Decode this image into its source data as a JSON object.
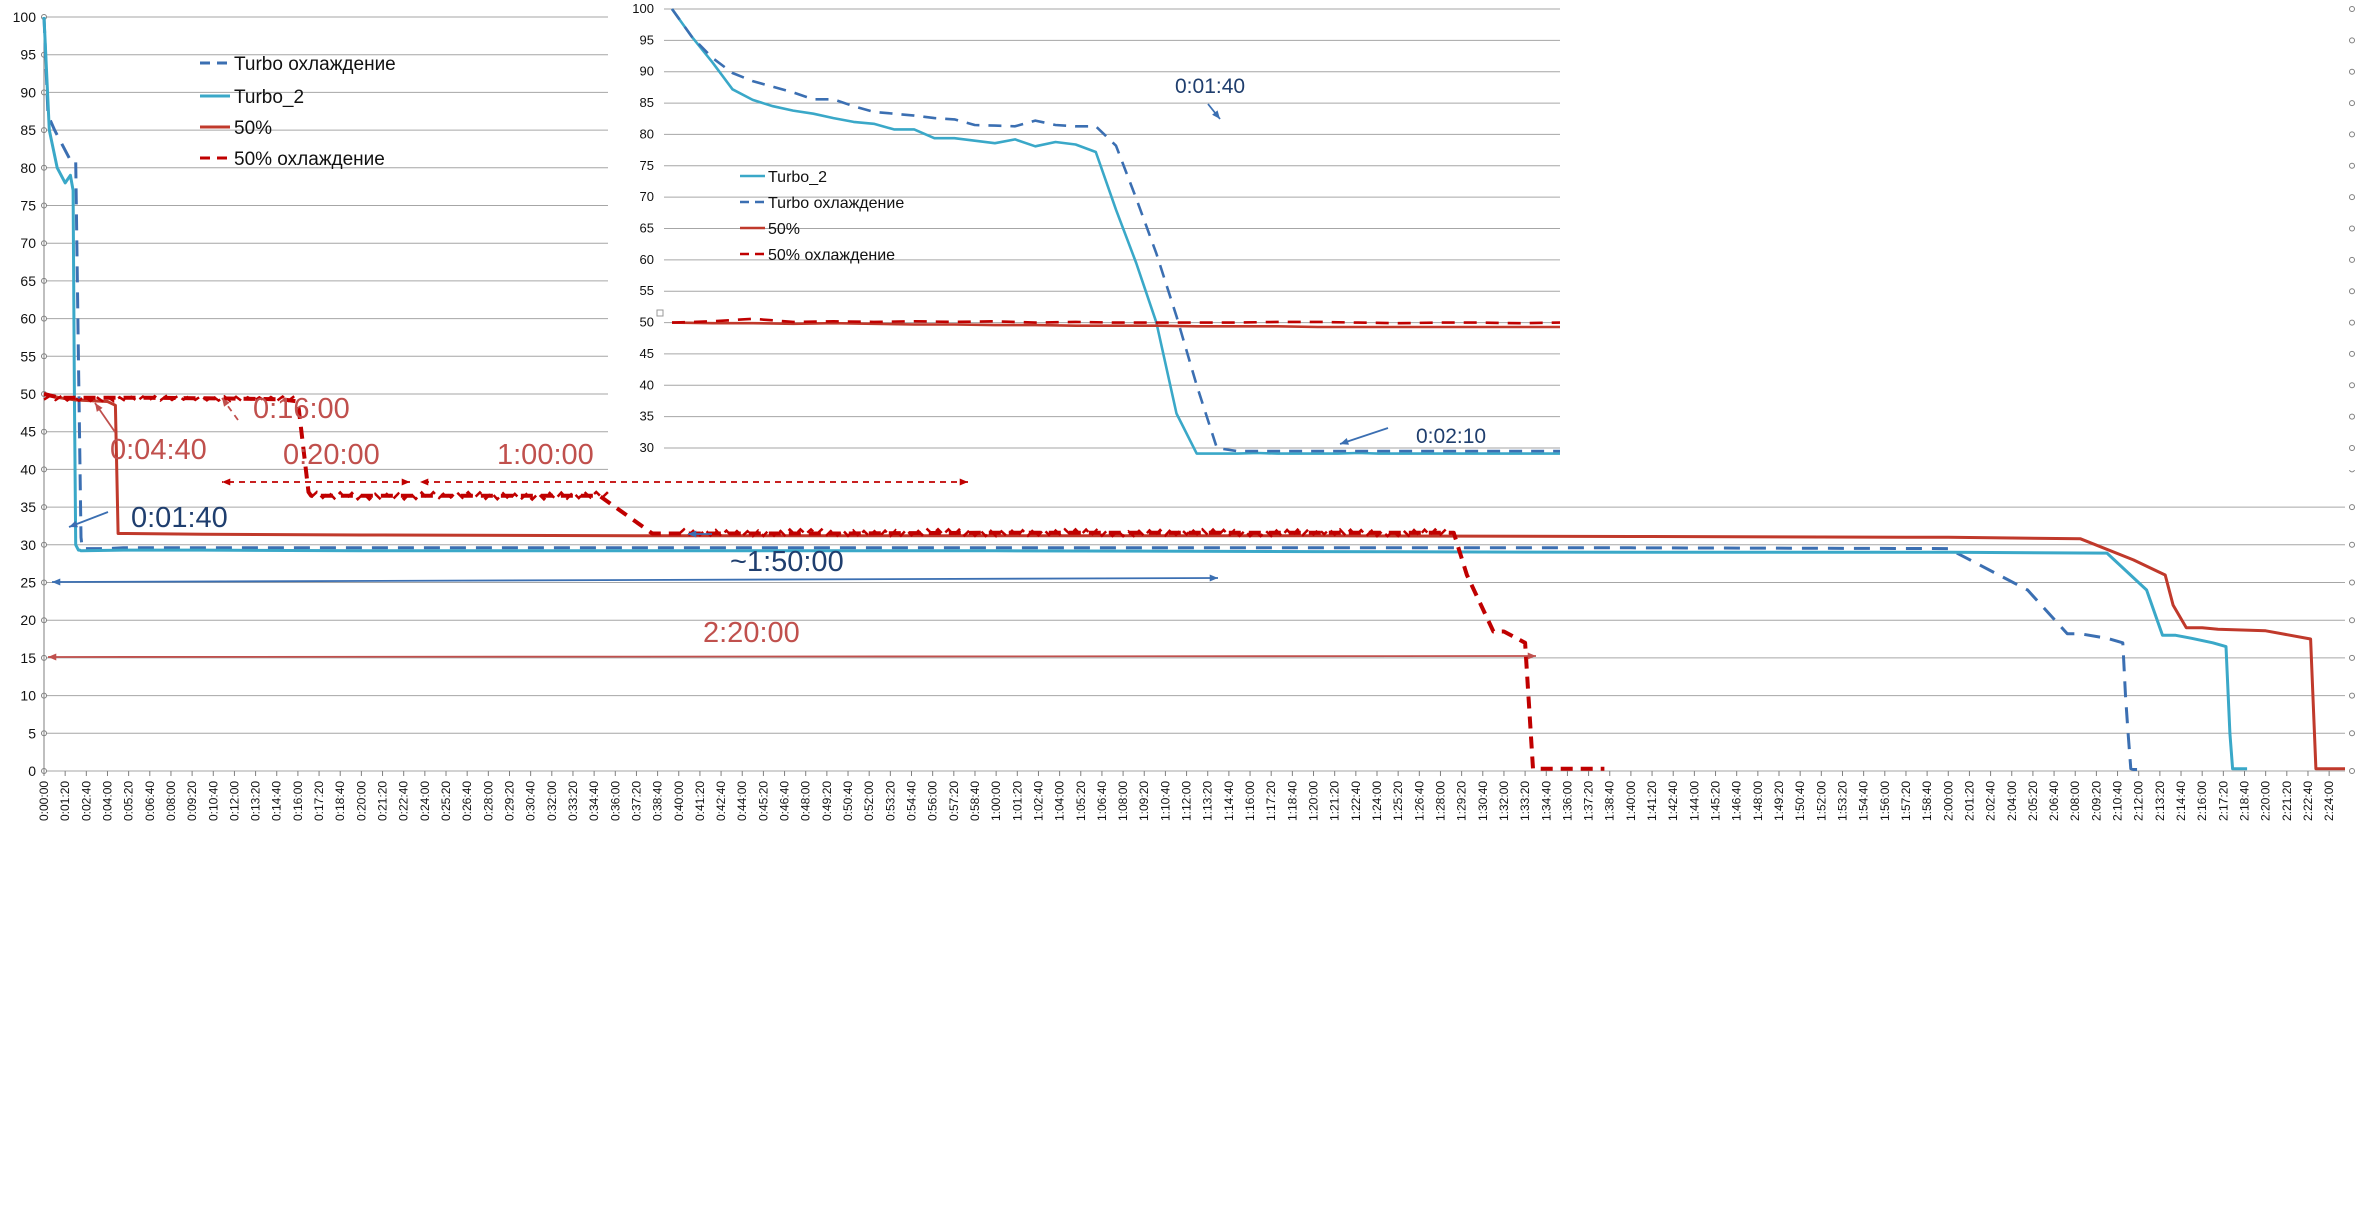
{
  "colors": {
    "turbo_dashed": "#3B6FB2",
    "turbo_2": "#3AA8C8",
    "half": "#C0392B",
    "half_dashed": "#C00000",
    "blue_text": "#1F3E6E",
    "red_text": "#C0504D",
    "grid": "#A6A6A6"
  },
  "chart_data": [
    {
      "type": "line",
      "title": "",
      "xlabel": "",
      "ylabel": "",
      "ylim": [
        0,
        100
      ],
      "xlim_seconds": [
        0,
        8700
      ],
      "ytick_step": 5,
      "grid": "horizontal",
      "legend_position": "top-left",
      "x_ticks": [
        "0:00:00",
        "0:01:20",
        "0:02:40",
        "0:04:00",
        "0:05:20",
        "0:06:40",
        "0:08:00",
        "0:09:20",
        "0:10:40",
        "0:12:00",
        "0:13:20",
        "0:14:40",
        "0:16:00",
        "0:17:20",
        "0:18:40",
        "0:20:00",
        "0:21:20",
        "0:22:40",
        "0:24:00",
        "0:25:20",
        "0:26:40",
        "0:28:00",
        "0:29:20",
        "0:30:40",
        "0:32:00",
        "0:33:20",
        "0:34:40",
        "0:36:00",
        "0:37:20",
        "0:38:40",
        "0:40:00",
        "0:41:20",
        "0:42:40",
        "0:44:00",
        "0:45:20",
        "0:46:40",
        "0:48:00",
        "0:49:20",
        "0:50:40",
        "0:52:00",
        "0:53:20",
        "0:54:40",
        "0:56:00",
        "0:57:20",
        "0:58:40",
        "1:00:00",
        "1:01:20",
        "1:02:40",
        "1:04:00",
        "1:05:20",
        "1:06:40",
        "1:08:00",
        "1:09:20",
        "1:10:40",
        "1:12:00",
        "1:13:20",
        "1:14:40",
        "1:16:00",
        "1:17:20",
        "1:18:40",
        "1:20:00",
        "1:21:20",
        "1:22:40",
        "1:24:00",
        "1:25:20",
        "1:26:40",
        "1:28:00",
        "1:29:20",
        "1:30:40",
        "1:32:00",
        "1:33:20",
        "1:34:40",
        "1:36:00",
        "1:37:20",
        "1:38:40",
        "1:40:00",
        "1:41:20",
        "1:42:40",
        "1:44:00",
        "1:45:20",
        "1:46:40",
        "1:48:00",
        "1:49:20",
        "1:50:40",
        "1:52:00",
        "1:53:20",
        "1:54:40",
        "1:56:00",
        "1:57:20",
        "1:58:40",
        "2:00:00",
        "2:01:20",
        "2:02:40",
        "2:04:00",
        "2:05:20",
        "2:06:40",
        "2:08:00",
        "2:09:20",
        "2:10:40",
        "2:12:00",
        "2:13:20",
        "2:14:40",
        "2:16:00",
        "2:17:20",
        "2:18:40",
        "2:20:00",
        "2:21:20",
        "2:22:40",
        "2:24:00"
      ],
      "legend": [
        "Turbo охлаждение",
        "Turbo_2",
        "50%",
        "50% охлаждение"
      ],
      "series": [
        {
          "name": "Turbo охлаждение",
          "dash": true,
          "color_key": "turbo_dashed",
          "x": [
            0,
            15,
            40,
            70,
            100,
            120,
            130,
            140,
            145,
            150,
            180,
            240,
            300,
            600,
            1200,
            2400,
            3600,
            4800,
            6000,
            7200,
            7500,
            7650,
            7700,
            7800,
            7860,
            7870,
            7880,
            7890,
            7900,
            7920
          ],
          "y": [
            100,
            87,
            85,
            83,
            81,
            81,
            55,
            31,
            29.5,
            29.5,
            29.5,
            29.5,
            29.6,
            29.6,
            29.6,
            29.6,
            29.6,
            29.6,
            29.6,
            29.5,
            24,
            18.2,
            18.2,
            17.6,
            17,
            10,
            5,
            0.3,
            0.2,
            0.2
          ]
        },
        {
          "name": "Turbo_2",
          "dash": false,
          "color_key": "turbo_2",
          "x": [
            0,
            20,
            50,
            80,
            100,
            110,
            115,
            120,
            130,
            135,
            140,
            300,
            600,
            1200,
            2400,
            3600,
            4800,
            6000,
            7200,
            7800,
            7950,
            8010,
            8060,
            8120,
            8200,
            8250,
            8265,
            8275,
            8290,
            8330
          ],
          "y": [
            100,
            85,
            80,
            78,
            79,
            77,
            50,
            30,
            29.3,
            29.3,
            29.2,
            29.3,
            29.3,
            29.2,
            29.2,
            29.2,
            29.1,
            29,
            29,
            28.9,
            24,
            18,
            18,
            17.6,
            17,
            16.5,
            5,
            0.3,
            0.3,
            0.3
          ]
        },
        {
          "name": "50%",
          "dash": false,
          "color_key": "half",
          "x": [
            0,
            60,
            120,
            240,
            270,
            280,
            300,
            600,
            1200,
            2400,
            3600,
            4800,
            6000,
            7200,
            7700,
            7900,
            8020,
            8050,
            8100,
            8160,
            8220,
            8400,
            8570,
            8590,
            8600,
            8650,
            8700
          ],
          "y": [
            50,
            49.5,
            49.2,
            49,
            48.5,
            31.5,
            31.5,
            31.4,
            31.3,
            31.2,
            31.2,
            31.2,
            31.1,
            31,
            30.8,
            28,
            26,
            22,
            19,
            19,
            18.8,
            18.6,
            17.5,
            0.3,
            0.3,
            0.3,
            0.3
          ]
        },
        {
          "name": "50% охлаждение",
          "dash": true,
          "color_key": "half_dashed",
          "x": [
            0,
            60,
            180,
            400,
            700,
            900,
            960,
            1000,
            1010,
            1200,
            1500,
            1800,
            2100,
            2200,
            2300,
            2400,
            2600,
            3000,
            3600,
            4200,
            5000,
            5330,
            5380,
            5480,
            5520,
            5600,
            5630,
            5660,
            5700,
            5900
          ],
          "y": [
            50,
            49.5,
            49.5,
            49.5,
            49.4,
            49.3,
            49,
            37,
            36.5,
            36.5,
            36.5,
            36.5,
            36.5,
            34,
            31.5,
            31.5,
            31.5,
            31.5,
            31.6,
            31.6,
            31.6,
            31.6,
            26,
            18.5,
            18.5,
            17,
            0.3,
            0.3,
            0.3,
            0.3
          ]
        }
      ],
      "annotations": [
        {
          "text": "0:16:00",
          "color_key": "red_text"
        },
        {
          "text": "0:04:40",
          "color_key": "red_text"
        },
        {
          "text": "0:20:00",
          "color_key": "red_text"
        },
        {
          "text": "1:00:00",
          "color_key": "red_text"
        },
        {
          "text": "0:01:40",
          "color_key": "blue_text"
        },
        {
          "text": "~1:50:00",
          "color_key": "blue_text"
        },
        {
          "text": "2:20:00",
          "color_key": "red_text"
        }
      ]
    },
    {
      "type": "line",
      "title": "",
      "xlabel": "",
      "ylabel": "",
      "ylim": [
        30,
        100
      ],
      "ytick_step": 5,
      "grid": "horizontal",
      "legend_position": "middle-left",
      "legend": [
        "Turbo_2",
        "Turbo охлаждение",
        "50%",
        "50% охлаждение"
      ],
      "series": [
        {
          "name": "Turbo_2",
          "dash": false,
          "color_key": "turbo_2",
          "x": [
            0,
            1,
            2,
            3,
            4,
            5,
            6,
            7,
            8,
            9,
            10,
            11,
            12,
            13,
            14,
            15,
            16,
            17,
            18,
            19,
            20,
            21,
            22,
            23,
            24,
            25,
            26,
            27,
            28,
            29,
            30,
            31,
            32,
            33,
            34,
            35,
            36,
            37,
            38,
            39,
            40,
            41,
            42,
            43,
            44
          ],
          "y": [
            100,
            95.5,
            91.5,
            87.2,
            85.5,
            84.5,
            83.8,
            83.3,
            82.6,
            82,
            81.7,
            80.8,
            80.8,
            79.4,
            79.4,
            79,
            78.6,
            79.2,
            78.1,
            78.8,
            78.4,
            77.2,
            68,
            59.5,
            50,
            35.5,
            29.1,
            29.1,
            29.1,
            29.2,
            29.1,
            29.1,
            29.1,
            29.1,
            29.2,
            29.1,
            29.1,
            29.1,
            29.1,
            29.1,
            29.1,
            29.1,
            29.1,
            29.1,
            29.1
          ]
        },
        {
          "name": "Turbo охлаждение",
          "dash": true,
          "color_key": "turbo_dashed",
          "x": [
            0,
            1,
            2,
            3,
            4,
            5,
            6,
            7,
            8,
            9,
            10,
            11,
            12,
            13,
            14,
            15,
            16,
            17,
            18,
            19,
            20,
            21,
            22,
            23,
            24,
            25,
            26,
            27,
            28,
            29,
            30,
            31,
            32,
            33,
            34,
            35,
            36,
            37,
            38,
            39,
            40,
            41,
            42,
            43,
            44
          ],
          "y": [
            100,
            95.5,
            92.2,
            89.8,
            88.5,
            87.6,
            86.7,
            85.6,
            85.6,
            84.5,
            83.6,
            83.3,
            83,
            82.6,
            82.4,
            81.5,
            81.4,
            81.3,
            82.2,
            81.5,
            81.3,
            81.3,
            78.2,
            69.8,
            61,
            51,
            40,
            30,
            29.5,
            29.5,
            29.5,
            29.5,
            29.5,
            29.5,
            29.5,
            29.5,
            29.5,
            29.5,
            29.5,
            29.5,
            29.5,
            29.5,
            29.5,
            29.5,
            29.5
          ]
        },
        {
          "name": "50%",
          "dash": false,
          "color_key": "half",
          "x": [
            0,
            2,
            4,
            6,
            8,
            10,
            12,
            14,
            16,
            18,
            20,
            22,
            24,
            26,
            28,
            30,
            32,
            34,
            36,
            38,
            40,
            42,
            44
          ],
          "y": [
            50,
            49.9,
            49.9,
            49.8,
            49.9,
            49.8,
            49.7,
            49.7,
            49.6,
            49.6,
            49.5,
            49.5,
            49.5,
            49.4,
            49.4,
            49.4,
            49.3,
            49.3,
            49.3,
            49.3,
            49.3,
            49.3,
            49.3
          ]
        },
        {
          "name": "50% охлаждение",
          "dash": true,
          "color_key": "half_dashed",
          "x": [
            0,
            2,
            4,
            6,
            8,
            10,
            12,
            14,
            16,
            18,
            20,
            22,
            24,
            26,
            28,
            30,
            32,
            34,
            36,
            38,
            40,
            42,
            44
          ],
          "y": [
            50,
            50.2,
            50.6,
            50.1,
            50.2,
            50.1,
            50.2,
            50.1,
            50.2,
            50,
            50.1,
            50,
            50,
            50,
            50,
            50.1,
            50.1,
            50,
            49.9,
            50,
            50,
            49.9,
            50
          ]
        }
      ],
      "annotations": [
        {
          "text": "0:01:40",
          "color_key": "blue_text"
        },
        {
          "text": "0:02:10",
          "color_key": "blue_text"
        }
      ]
    }
  ]
}
